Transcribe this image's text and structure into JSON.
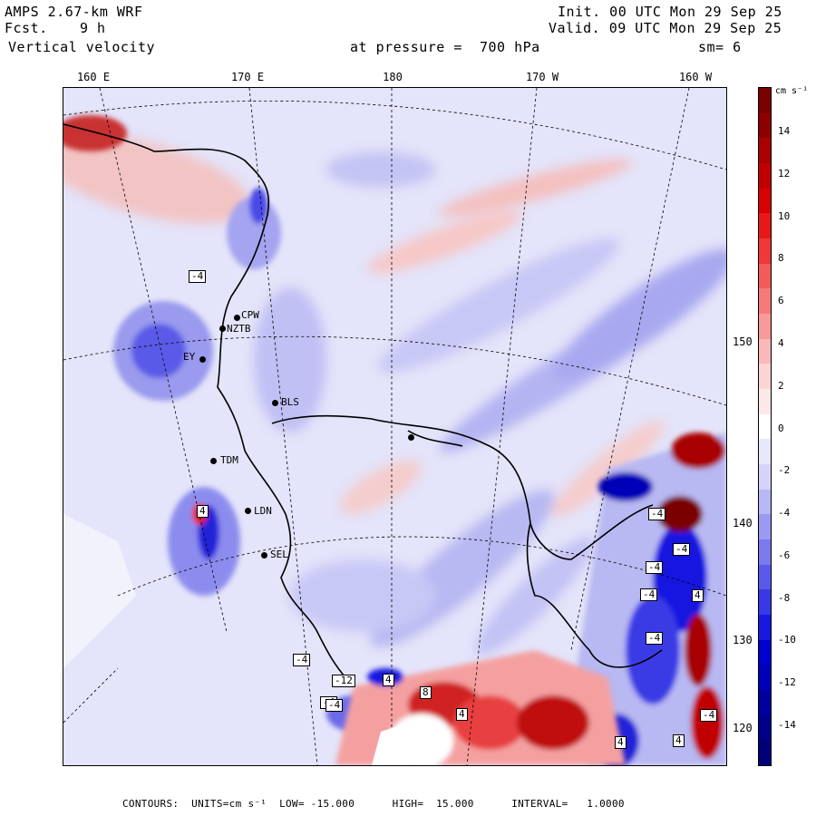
{
  "header": {
    "model": "AMPS 2.67-km WRF",
    "forecast_label": "Fcst.",
    "forecast_value": "9 h",
    "field": "Vertical velocity",
    "init": "Init. 00 UTC Mon 29 Sep 25",
    "valid": "Valid. 09 UTC Mon 29 Sep 25",
    "level": "at pressure =  700 hPa",
    "smoothing": "sm= 6"
  },
  "longitude_labels": [
    "160 E",
    "170 E",
    "180",
    "170 W",
    "160 W"
  ],
  "latitude_labels": [
    "150 W",
    "140 W",
    "130 W",
    "120 W"
  ],
  "stations": [
    "CPW",
    "NZTB",
    "EY",
    "BLS",
    "TDM",
    "LDN",
    "SEL"
  ],
  "colorbar": {
    "units": "cm s⁻¹",
    "ticks": [
      "14",
      "12",
      "10",
      "8",
      "6",
      "4",
      "2",
      "0",
      "-2",
      "-4",
      "-6",
      "-8",
      "-10",
      "-12",
      "-14"
    ],
    "colors_top_to_bottom": [
      "#7a0000",
      "#8e0000",
      "#a80000",
      "#c00000",
      "#d80000",
      "#e81818",
      "#f03838",
      "#f45a5a",
      "#f67a7a",
      "#f89a9a",
      "#fab8b8",
      "#fcd4d4",
      "#fde8e8",
      "#ffffff",
      "#e8e8fc",
      "#d4d4fa",
      "#b8b8f6",
      "#9a9af2",
      "#7a7aee",
      "#5a5aea",
      "#3838e6",
      "#1818e0",
      "#0000d0",
      "#0000b8",
      "#00009e",
      "#000088",
      "#000078"
    ]
  },
  "footer": {
    "text": "CONTOURS:  UNITS=cm s⁻¹  LOW= -15.000      HIGH=  15.000      INTERVAL=   1.0000"
  },
  "map_labels": [
    "-4",
    "-4",
    "-4",
    "-12",
    "-4",
    "4",
    "-4",
    "4",
    "-4",
    "-4",
    "-4",
    "-4",
    "8",
    "4",
    "4",
    "4",
    "4",
    "-4"
  ]
}
